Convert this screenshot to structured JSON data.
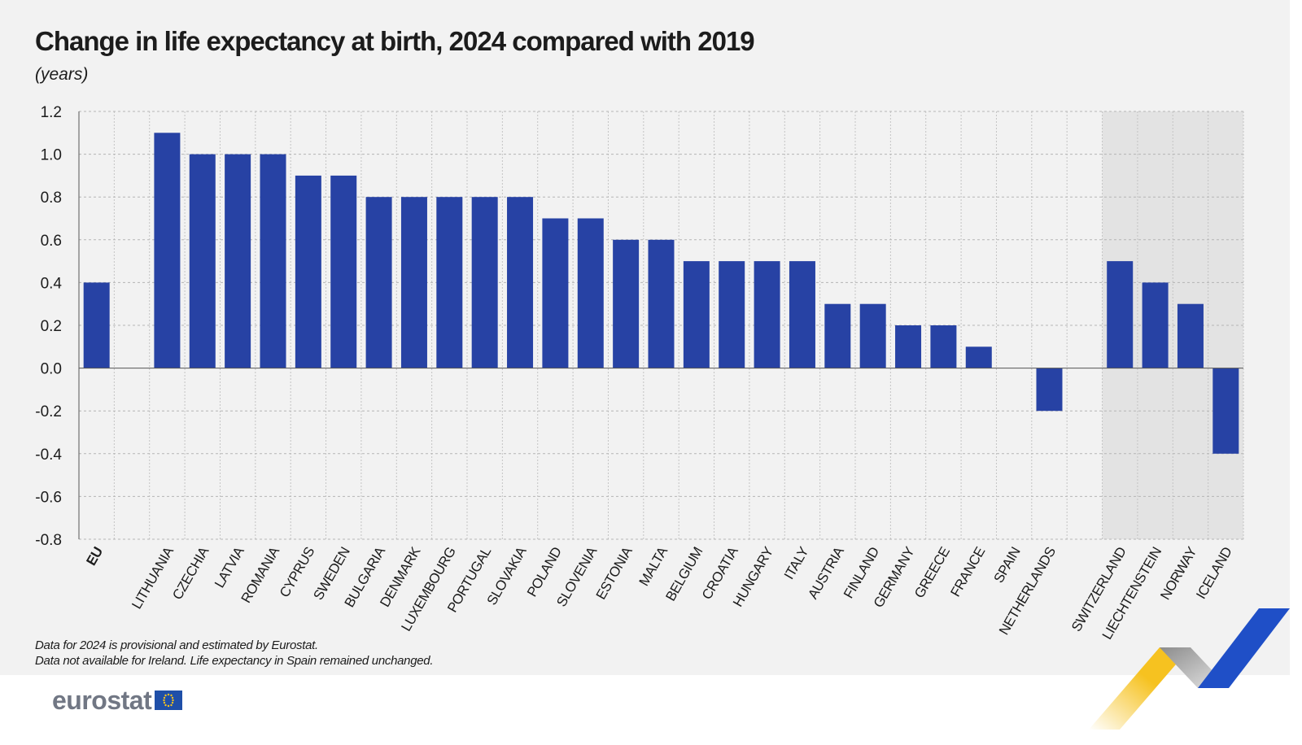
{
  "title": "Change in life expectancy at birth, 2024 compared with 2019",
  "subtitle": "(years)",
  "footnotes": [
    "Data for 2024 is provisional and estimated by Eurostat.",
    "Data not available for Ireland. Life expectancy in Spain remained unchanged."
  ],
  "logo": {
    "text": "eurostat",
    "flag_icon": "eu-flag-icon"
  },
  "colors": {
    "bar": "#2742a4",
    "panel": "#f2f2f2",
    "efta_band": "#e3e3e3",
    "grid": "#bdbdbd",
    "axis": "#444444",
    "ribbon_yellow": "#f6c220",
    "ribbon_blue": "#1f4fc7",
    "ribbon_grey": "#9a9a9a"
  },
  "chart_data": {
    "type": "bar",
    "categories": [
      "EU",
      "",
      "LITHUANIA",
      "CZECHIA",
      "LATVIA",
      "ROMANIA",
      "CYPRUS",
      "SWEDEN",
      "BULGARIA",
      "DENMARK",
      "LUXEMBOURG",
      "PORTUGAL",
      "SLOVAKIA",
      "POLAND",
      "SLOVENIA",
      "ESTONIA",
      "MALTA",
      "BELGIUM",
      "CROATIA",
      "HUNGARY",
      "ITALY",
      "AUSTRIA",
      "FINLAND",
      "GERMANY",
      "GREECE",
      "FRANCE",
      "SPAIN",
      "NETHERLANDS",
      "",
      "SWITZERLAND",
      "LIECHTENSTEIN",
      "NORWAY",
      "ICELAND"
    ],
    "values": [
      0.4,
      null,
      1.1,
      1.0,
      1.0,
      1.0,
      0.9,
      0.9,
      0.8,
      0.8,
      0.8,
      0.8,
      0.8,
      0.7,
      0.7,
      0.6,
      0.6,
      0.5,
      0.5,
      0.5,
      0.5,
      0.3,
      0.3,
      0.2,
      0.2,
      0.1,
      0.0,
      -0.2,
      null,
      0.5,
      0.4,
      0.3,
      -0.4
    ],
    "ylim": [
      -0.8,
      1.2
    ],
    "yticks": [
      "1.2",
      "1.0",
      "0.8",
      "0.6",
      "0.4",
      "0.2",
      "0.0",
      "-0.2",
      "-0.4",
      "-0.6",
      "-0.8"
    ],
    "ytick_values": [
      1.2,
      1.0,
      0.8,
      0.6,
      0.4,
      0.2,
      0.0,
      -0.2,
      -0.4,
      -0.6,
      -0.8
    ],
    "bold_categories": [
      "EU"
    ],
    "shaded_categories": [
      "SWITZERLAND",
      "LIECHTENSTEIN",
      "NORWAY",
      "ICELAND"
    ],
    "grid": true,
    "xlabel": "",
    "ylabel": ""
  }
}
